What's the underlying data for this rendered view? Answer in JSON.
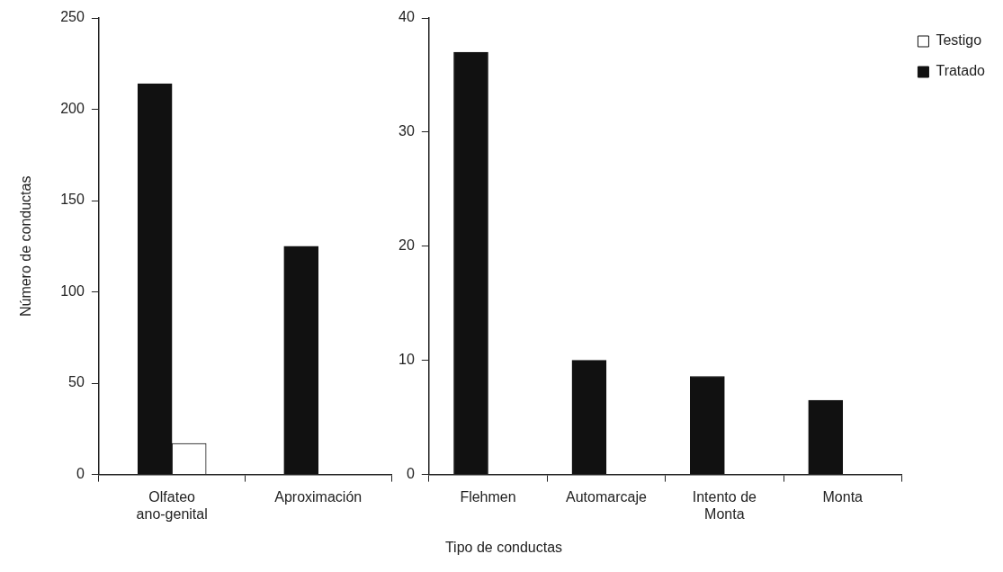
{
  "chart_data": [
    {
      "type": "bar",
      "ylabel": "Número de conductas",
      "xlabel": "Tipo de conductas",
      "categories": [
        "Olfateo ano-genital",
        "Aproximación"
      ],
      "ylim": [
        0,
        250
      ],
      "yticks": [
        0,
        50,
        100,
        150,
        200,
        250
      ],
      "grid": false,
      "series": [
        {
          "color": "#111111",
          "values": [
            214,
            125
          ]
        },
        {
          "color": "#ffffff",
          "values": [
            17,
            null
          ]
        }
      ]
    },
    {
      "type": "bar",
      "categories": [
        "Flehmen",
        "Automarcaje",
        "Intento de Monta",
        "Monta"
      ],
      "ylim": [
        0,
        40
      ],
      "yticks": [
        0,
        10,
        20,
        30,
        40
      ],
      "grid": false,
      "legend": "top right",
      "series": [
        {
          "name": "Tratado",
          "color": "#111111",
          "values": [
            37,
            10,
            8.6,
            6.5
          ]
        },
        {
          "name": "Testigo",
          "color": "#ffffff",
          "values": [
            null,
            null,
            null,
            null
          ]
        }
      ]
    }
  ]
}
